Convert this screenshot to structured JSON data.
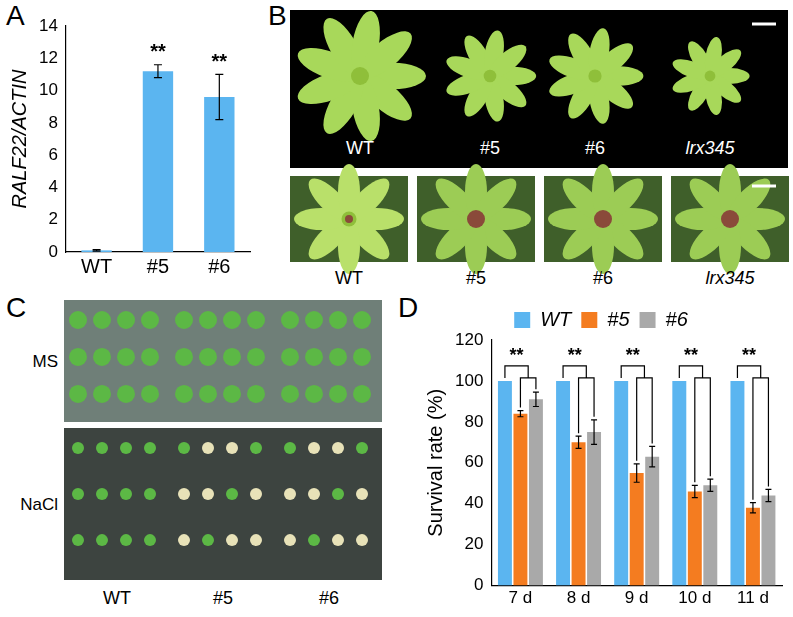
{
  "chart_data": [
    {
      "panel": "A",
      "type": "bar",
      "y_label": "RALF22/ACTIN",
      "categories": [
        "WT",
        "#5",
        "#6"
      ],
      "values": [
        0.1,
        11.2,
        9.6
      ],
      "errors": [
        0.05,
        0.4,
        1.4
      ],
      "color": "#5bb5f0",
      "ylim": [
        0,
        14
      ],
      "yticks": [
        0,
        2,
        4,
        6,
        8,
        10,
        12,
        14
      ],
      "annotations": [
        {
          "category": "#5",
          "text": "**"
        },
        {
          "category": "#6",
          "text": "**"
        }
      ]
    },
    {
      "panel": "D",
      "type": "bar",
      "y_label": "Survival rate (%)",
      "categories": [
        "7 d",
        "8 d",
        "9 d",
        "10 d",
        "11 d"
      ],
      "series": [
        {
          "name": "WT",
          "color": "#5bb5f0",
          "values": [
            100,
            100,
            100,
            100,
            100
          ],
          "errors": [
            0,
            0,
            0,
            0,
            0
          ]
        },
        {
          "name": "#5",
          "color": "#f47c20",
          "values": [
            84,
            70,
            55,
            46,
            38
          ],
          "errors": [
            1.5,
            3,
            4.5,
            3,
            2.5
          ]
        },
        {
          "name": "#6",
          "color": "#a9a9a9",
          "values": [
            91,
            75,
            63,
            49,
            44
          ],
          "errors": [
            3.5,
            6,
            5,
            3,
            3
          ]
        }
      ],
      "ylim": [
        0,
        120
      ],
      "yticks": [
        0,
        20,
        40,
        60,
        80,
        100,
        120
      ],
      "legend": "top",
      "annotations": [
        {
          "category": "7 d",
          "text": "**"
        },
        {
          "category": "8 d",
          "text": "**"
        },
        {
          "category": "9 d",
          "text": "**"
        },
        {
          "category": "10 d",
          "text": "**"
        },
        {
          "category": "11 d",
          "text": "**"
        }
      ]
    }
  ],
  "photos": [
    {
      "panel": "B",
      "top_labels": [
        "WT",
        "#5",
        "#6",
        "lrx345"
      ],
      "bottom_labels": [
        "WT",
        "#5",
        "#6",
        "lrx345"
      ]
    },
    {
      "panel": "C",
      "row_labels": [
        "MS",
        "NaCl"
      ],
      "column_labels": [
        "WT",
        "#5",
        "#6"
      ]
    }
  ]
}
